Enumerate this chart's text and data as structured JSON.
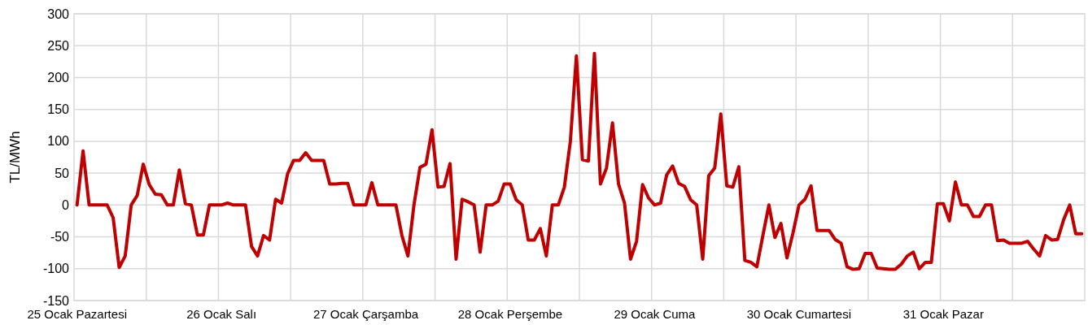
{
  "chart_data": {
    "type": "line",
    "ylabel": "TL/MWh",
    "categories": [
      "25 Ocak Pazartesi",
      null,
      null,
      null,
      null,
      null,
      null,
      null,
      null,
      null,
      null,
      null,
      null,
      null,
      null,
      null,
      null,
      null,
      null,
      null,
      null,
      null,
      null,
      null,
      "26 Ocak Salı",
      null,
      null,
      null,
      null,
      null,
      null,
      null,
      null,
      null,
      null,
      null,
      null,
      null,
      null,
      null,
      null,
      null,
      null,
      null,
      null,
      null,
      null,
      null,
      "27 Ocak Çarşamba",
      null,
      null,
      null,
      null,
      null,
      null,
      null,
      null,
      null,
      null,
      null,
      null,
      null,
      null,
      null,
      null,
      null,
      null,
      null,
      null,
      null,
      null,
      null,
      "28 Ocak Perşembe",
      null,
      null,
      null,
      null,
      null,
      null,
      null,
      null,
      null,
      null,
      null,
      null,
      null,
      null,
      null,
      null,
      null,
      null,
      null,
      null,
      null,
      null,
      null,
      "29 Ocak Cuma",
      null,
      null,
      null,
      null,
      null,
      null,
      null,
      null,
      null,
      null,
      null,
      null,
      null,
      null,
      null,
      null,
      null,
      null,
      null,
      null,
      null,
      null,
      null,
      "30 Ocak Cumartesi",
      null,
      null,
      null,
      null,
      null,
      null,
      null,
      null,
      null,
      null,
      null,
      null,
      null,
      null,
      null,
      null,
      null,
      null,
      null,
      null,
      null,
      null,
      null,
      "31 Ocak Pazar",
      null,
      null,
      null,
      null,
      null,
      null,
      null,
      null,
      null,
      null,
      null,
      null,
      null,
      null,
      null,
      null,
      null,
      null,
      null,
      null,
      null,
      null,
      null
    ],
    "series": [
      {
        "color": "#c00000",
        "values": [
          0,
          85,
          0,
          0,
          0,
          0,
          -20,
          -98,
          -80,
          0,
          15,
          64,
          32,
          17,
          16,
          0,
          0,
          55,
          2,
          0,
          -47,
          -47,
          0,
          0,
          0,
          3,
          0,
          0,
          0,
          -65,
          -80,
          -48,
          -55,
          9,
          3,
          49,
          70,
          70,
          82,
          70,
          70,
          70,
          33,
          33,
          34,
          34,
          0,
          0,
          0,
          35,
          0,
          0,
          0,
          0,
          -48,
          -80,
          0,
          59,
          64,
          118,
          28,
          29,
          65,
          -85,
          9,
          5,
          0,
          -74,
          0,
          0,
          6,
          33,
          33,
          8,
          0,
          -55,
          -55,
          -37,
          -80,
          0,
          0,
          28,
          100,
          234,
          71,
          69,
          238,
          33,
          58,
          129,
          33,
          3,
          -85,
          -57,
          32,
          11,
          0,
          3,
          47,
          61,
          34,
          29,
          8,
          0,
          -85,
          46,
          58,
          143,
          30,
          28,
          60,
          -87,
          -90,
          -97,
          -48,
          0,
          -51,
          -29,
          -83,
          -44,
          0,
          9,
          30,
          -40,
          -40,
          -40,
          -54,
          -60,
          -97,
          -101,
          -100,
          -76,
          -76,
          -99,
          -100,
          -101,
          -101,
          -93,
          -80,
          -74,
          -100,
          -90,
          -90,
          2,
          2,
          -25,
          36,
          0,
          0,
          -18,
          -18,
          0,
          0,
          -56,
          -55,
          -60,
          -60,
          -60,
          -57,
          -69,
          -80,
          -48,
          -55,
          -54,
          -23,
          0,
          -45,
          -45
        ]
      }
    ],
    "ylim": [
      -150,
      300
    ],
    "yticks": [
      -150,
      -100,
      -50,
      0,
      50,
      100,
      150,
      200,
      250,
      300
    ],
    "grid": true,
    "line_style": "solid",
    "marker": "none"
  }
}
